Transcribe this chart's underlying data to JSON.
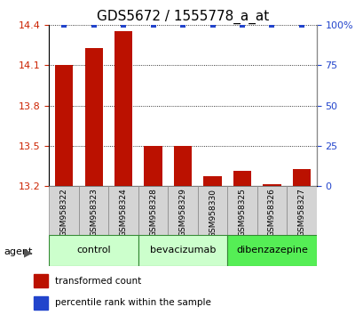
{
  "title": "GDS5672 / 1555778_a_at",
  "categories": [
    "GSM958322",
    "GSM958323",
    "GSM958324",
    "GSM958328",
    "GSM958329",
    "GSM958330",
    "GSM958325",
    "GSM958326",
    "GSM958327"
  ],
  "bar_values": [
    14.105,
    14.23,
    14.355,
    13.5,
    13.5,
    13.275,
    13.315,
    13.21,
    13.325
  ],
  "percentile_values": [
    100,
    100,
    100,
    100,
    100,
    100,
    100,
    100,
    100
  ],
  "bar_color": "#bb1100",
  "percentile_color": "#2244cc",
  "ylim_left": [
    13.2,
    14.4
  ],
  "ylim_right": [
    0,
    100
  ],
  "yticks_left": [
    13.2,
    13.5,
    13.8,
    14.1,
    14.4
  ],
  "yticks_right": [
    0,
    25,
    50,
    75,
    100
  ],
  "groups": [
    {
      "label": "control",
      "indices": [
        0,
        1,
        2
      ],
      "color": "#ccffcc"
    },
    {
      "label": "bevacizumab",
      "indices": [
        3,
        4,
        5
      ],
      "color": "#ccffcc"
    },
    {
      "label": "dibenzazepine",
      "indices": [
        6,
        7,
        8
      ],
      "color": "#55ee55"
    }
  ],
  "agent_label": "agent",
  "legend_items": [
    {
      "label": "transformed count",
      "color": "#bb1100"
    },
    {
      "label": "percentile rank within the sample",
      "color": "#2244cc"
    }
  ],
  "grid_color": "#000000",
  "title_fontsize": 11,
  "bar_width": 0.6,
  "tick_label_color_left": "#cc2200",
  "tick_label_color_right": "#2244cc",
  "background_color": "#ffffff"
}
